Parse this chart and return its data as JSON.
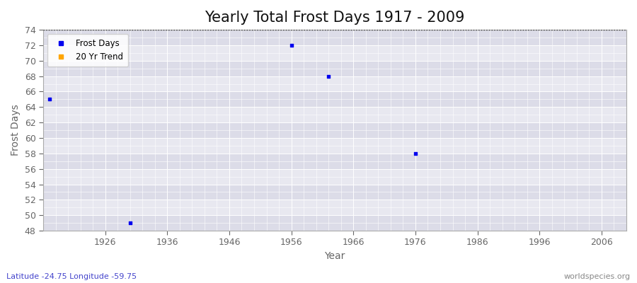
{
  "title": "Yearly Total Frost Days 1917 - 2009",
  "xlabel": "Year",
  "ylabel": "Frost Days",
  "xlim": [
    1916,
    2010
  ],
  "ylim": [
    48,
    74
  ],
  "yticks": [
    48,
    50,
    52,
    54,
    56,
    58,
    60,
    62,
    64,
    66,
    68,
    70,
    72,
    74
  ],
  "xticks": [
    1926,
    1936,
    1946,
    1956,
    1966,
    1976,
    1986,
    1996,
    2006
  ],
  "data_points": [
    {
      "year": 1917,
      "value": 65
    },
    {
      "year": 1930,
      "value": 49
    },
    {
      "year": 1956,
      "value": 72
    },
    {
      "year": 1962,
      "value": 68
    },
    {
      "year": 1976,
      "value": 58
    }
  ],
  "point_color": "#0000ee",
  "point_marker": "s",
  "point_size": 9,
  "hline_y": 74,
  "hline_color": "#333333",
  "hline_style": "dotted",
  "bg_color": "#ffffff",
  "plot_bg_color": "#e8e8f0",
  "band_color_light": "#dcdce8",
  "band_color_dark": "#e8e8f0",
  "grid_color": "#ffffff",
  "grid_major_lw": 0.7,
  "grid_minor_lw": 0.4,
  "legend_items": [
    "Frost Days",
    "20 Yr Trend"
  ],
  "legend_colors": [
    "#0000ee",
    "#ffa500"
  ],
  "subtitle_left": "Latitude -24.75 Longitude -59.75",
  "subtitle_right": "worldspecies.org",
  "title_fontsize": 15,
  "axis_label_fontsize": 10,
  "tick_fontsize": 9,
  "tick_color": "#666666",
  "title_color": "#111111"
}
